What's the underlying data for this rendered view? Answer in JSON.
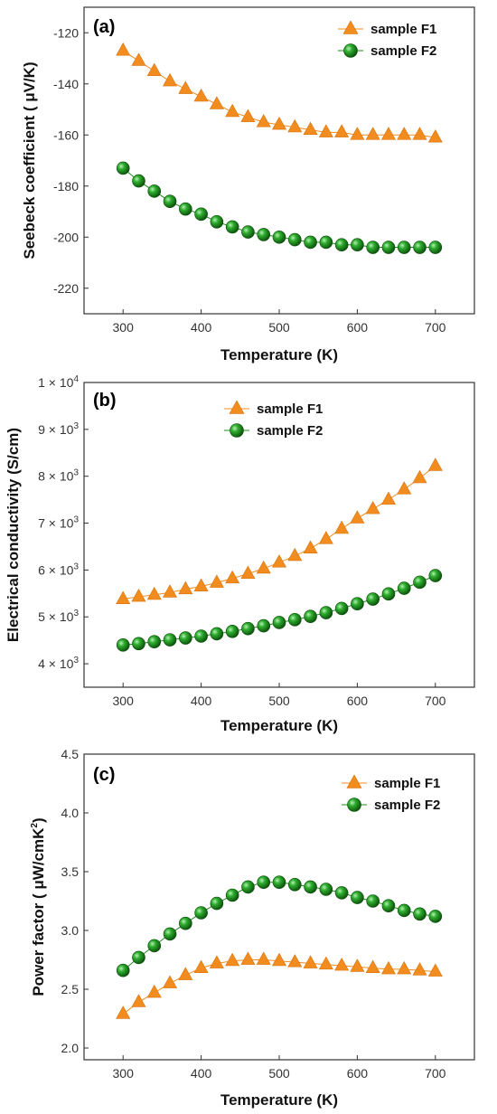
{
  "colors": {
    "f1": "#f28c1e",
    "f1_edge": "#d9730d",
    "f2": "#1f8a1f",
    "f2_edge": "#0a4d0a",
    "axis": "#333333"
  },
  "chart_data": [
    {
      "type": "line",
      "panel_label": "(a)",
      "xlabel": "Temperature (K)",
      "ylabel": "Seebeck coefficient ( μV/K)",
      "xlim": [
        250,
        750
      ],
      "ylim": [
        -230,
        -110
      ],
      "xticks": [
        300,
        400,
        500,
        600,
        700
      ],
      "yticks": [
        -220,
        -200,
        -180,
        -160,
        -140,
        -120
      ],
      "ytick_labels": [
        "-220",
        "-200",
        "-180",
        "-160",
        "-140",
        "-120"
      ],
      "legend_position": "top-right",
      "x": [
        300,
        320,
        340,
        360,
        380,
        400,
        420,
        440,
        460,
        480,
        500,
        520,
        540,
        560,
        580,
        600,
        620,
        640,
        660,
        680,
        700
      ],
      "series": [
        {
          "name": "sample F1",
          "marker": "triangle",
          "values": [
            -127,
            -131,
            -135,
            -139,
            -142,
            -145,
            -148,
            -151,
            -153,
            -155,
            -156,
            -157,
            -158,
            -159,
            -159,
            -160,
            -160,
            -160,
            -160,
            -160,
            -161
          ]
        },
        {
          "name": "sample F2",
          "marker": "sphere",
          "values": [
            -173,
            -178,
            -182,
            -186,
            -189,
            -191,
            -194,
            -196,
            -198,
            -199,
            -200,
            -201,
            -202,
            -202,
            -203,
            -203,
            -204,
            -204,
            -204,
            -204,
            -204
          ]
        }
      ]
    },
    {
      "type": "line",
      "panel_label": "(b)",
      "xlabel": "Temperature (K)",
      "ylabel": "Electrical conductivity (S/cm)",
      "xlim": [
        250,
        750
      ],
      "ylim": [
        3500,
        10000
      ],
      "xticks": [
        300,
        400,
        500,
        600,
        700
      ],
      "yticks": [
        4000,
        5000,
        6000,
        7000,
        8000,
        9000,
        10000
      ],
      "ytick_labels": [
        {
          "mantissa": "4",
          "base": "× 10",
          "exp": "3"
        },
        {
          "mantissa": "5",
          "base": "× 10",
          "exp": "3"
        },
        {
          "mantissa": "6",
          "base": "× 10",
          "exp": "3"
        },
        {
          "mantissa": "7",
          "base": "× 10",
          "exp": "3"
        },
        {
          "mantissa": "8",
          "base": "× 10",
          "exp": "3"
        },
        {
          "mantissa": "9",
          "base": "× 10",
          "exp": "3"
        },
        {
          "mantissa": "1",
          "base": "× 10",
          "exp": "4"
        }
      ],
      "legend_position": "top-center",
      "x": [
        300,
        320,
        340,
        360,
        380,
        400,
        420,
        440,
        460,
        480,
        500,
        520,
        540,
        560,
        580,
        600,
        620,
        640,
        660,
        680,
        700
      ],
      "series": [
        {
          "name": "sample F1",
          "marker": "triangle",
          "values": [
            5380,
            5430,
            5470,
            5520,
            5590,
            5650,
            5730,
            5820,
            5920,
            6030,
            6160,
            6300,
            6460,
            6660,
            6880,
            7100,
            7300,
            7500,
            7720,
            7960,
            8220
          ]
        },
        {
          "name": "sample F2",
          "marker": "sphere",
          "values": [
            4400,
            4430,
            4470,
            4510,
            4550,
            4590,
            4640,
            4690,
            4750,
            4810,
            4880,
            4940,
            5010,
            5090,
            5180,
            5280,
            5380,
            5490,
            5610,
            5740,
            5880
          ]
        }
      ]
    },
    {
      "type": "line",
      "panel_label": "(c)",
      "xlabel": "Temperature (K)",
      "ylabel": "Power factor ( μW/cmK",
      "ylabel_sup": "2",
      "ylabel_end": ")",
      "xlim": [
        250,
        750
      ],
      "ylim": [
        1.9,
        4.5
      ],
      "xticks": [
        300,
        400,
        500,
        600,
        700
      ],
      "yticks": [
        2.0,
        2.5,
        3.0,
        3.5,
        4.0,
        4.5
      ],
      "ytick_labels": [
        "2.0",
        "2.5",
        "3.0",
        "3.5",
        "4.0",
        "4.5"
      ],
      "legend_position": "top-right",
      "x": [
        300,
        320,
        340,
        360,
        380,
        400,
        420,
        440,
        460,
        480,
        500,
        520,
        540,
        560,
        580,
        600,
        620,
        640,
        660,
        680,
        700
      ],
      "series": [
        {
          "name": "sample F1",
          "marker": "triangle",
          "values": [
            2.29,
            2.39,
            2.47,
            2.55,
            2.62,
            2.68,
            2.72,
            2.74,
            2.75,
            2.75,
            2.74,
            2.73,
            2.72,
            2.71,
            2.7,
            2.69,
            2.68,
            2.67,
            2.67,
            2.66,
            2.65
          ]
        },
        {
          "name": "sample F2",
          "marker": "sphere",
          "values": [
            2.66,
            2.77,
            2.87,
            2.97,
            3.06,
            3.15,
            3.23,
            3.3,
            3.37,
            3.41,
            3.41,
            3.39,
            3.37,
            3.35,
            3.32,
            3.28,
            3.25,
            3.21,
            3.17,
            3.14,
            3.12
          ]
        }
      ]
    }
  ]
}
